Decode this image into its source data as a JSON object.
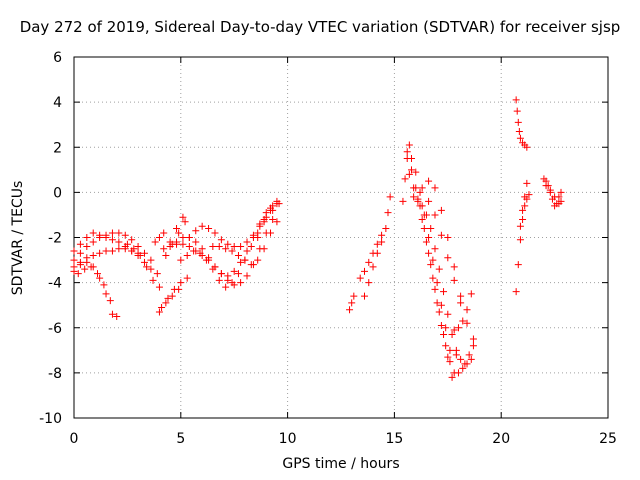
{
  "chart_data": {
    "type": "scatter",
    "title": "Day 272 of 2019, Sidereal Day-to-day VTEC variation (SDTVAR) for receiver sjsp",
    "xlabel": "GPS time / hours",
    "ylabel": "SDTVAR / TECUs",
    "xlim": [
      0,
      25
    ],
    "ylim": [
      -10,
      6
    ],
    "xticks": [
      "0",
      "5",
      "10",
      "15",
      "20",
      "25"
    ],
    "yticks": [
      "-10",
      "-8",
      "-6",
      "-4",
      "-2",
      "0",
      "2",
      "4",
      "6"
    ],
    "grid": true,
    "marker": "+",
    "color": "#ff0000",
    "series": [
      {
        "x": [
          0,
          0.3,
          0.6,
          0.9,
          1.2,
          1.5,
          1.8,
          2.1,
          2.4,
          2.7,
          3.0
        ],
        "y": [
          -2.6,
          -2.3,
          -2.0,
          -1.8,
          -1.9,
          -2.0,
          -2.1,
          -2.2,
          -2.4,
          -2.6,
          -2.7
        ]
      },
      {
        "x": [
          0,
          0.3,
          0.6,
          0.9,
          1.2,
          1.5,
          1.8,
          2.1,
          2.4,
          2.7,
          3.0,
          3.3,
          3.6
        ],
        "y": [
          -3.0,
          -2.7,
          -2.4,
          -2.2,
          -2.0,
          -1.9,
          -1.8,
          -1.8,
          -1.9,
          -2.1,
          -2.4,
          -2.7,
          -3.0
        ]
      },
      {
        "x": [
          0,
          0.3,
          0.6,
          0.9,
          1.2,
          1.5,
          1.8,
          2.1,
          2.4,
          2.7,
          3.0,
          3.3,
          3.6,
          3.9
        ],
        "y": [
          -3.3,
          -3.1,
          -2.9,
          -2.8,
          -2.7,
          -2.6,
          -2.6,
          -2.5,
          -2.5,
          -2.6,
          -2.8,
          -3.1,
          -3.4,
          -3.6
        ]
      },
      {
        "x": [
          0,
          0.3,
          0.6,
          0.9,
          1.2,
          1.5,
          1.8
        ],
        "y": [
          -3.5,
          -3.2,
          -3.1,
          -3.3,
          -3.8,
          -4.5,
          -5.4
        ]
      },
      {
        "x": [
          0.2,
          0.5,
          0.8,
          1.1,
          1.4,
          1.7,
          2.0
        ],
        "y": [
          -3.6,
          -3.4,
          -3.3,
          -3.6,
          -4.1,
          -4.8,
          -5.5
        ]
      },
      {
        "x": [
          2.5,
          2.8,
          3.1,
          3.4,
          3.7,
          4.0
        ],
        "y": [
          -2.3,
          -2.5,
          -2.8,
          -3.3,
          -3.9,
          -4.2
        ]
      },
      {
        "x": [
          3.8,
          4.0,
          4.2
        ],
        "y": [
          -2.2,
          -2.0,
          -1.8
        ]
      },
      {
        "x": [
          4.1,
          4.4,
          4.7,
          5.0,
          5.3
        ],
        "y": [
          -5.1,
          -4.7,
          -4.3,
          -4.0,
          -3.8
        ]
      },
      {
        "x": [
          4.0,
          4.3,
          4.6,
          4.9
        ],
        "y": [
          -5.3,
          -4.9,
          -4.6,
          -4.3
        ]
      },
      {
        "x": [
          4.3,
          4.6,
          4.9,
          5.2
        ],
        "y": [
          -2.8,
          -2.3,
          -1.8,
          -1.3
        ]
      },
      {
        "x": [
          4.5,
          4.8,
          5.1
        ],
        "y": [
          -2.2,
          -1.6,
          -1.1
        ]
      },
      {
        "x": [
          4.2,
          4.5,
          4.8,
          5.1,
          5.4,
          5.7,
          6.0,
          6.3,
          6.6,
          6.9,
          7.2,
          7.5,
          7.8,
          8.1,
          8.4,
          8.7,
          9.0,
          9.3
        ],
        "y": [
          -2.5,
          -2.4,
          -2.3,
          -2.3,
          -2.4,
          -2.6,
          -2.8,
          -3.0,
          -3.3,
          -3.6,
          -3.9,
          -4.1,
          -4.0,
          -3.7,
          -3.2,
          -2.5,
          -1.8,
          -1.2
        ]
      },
      {
        "x": [
          4.8,
          5.1,
          5.4,
          5.7,
          6.0,
          6.3,
          6.6,
          6.9,
          7.2,
          7.5,
          7.8,
          8.1,
          8.4,
          8.7,
          9.0,
          9.3
        ],
        "y": [
          -2.2,
          -2.0,
          -2.0,
          -2.2,
          -2.5,
          -2.9,
          -3.3,
          -3.6,
          -3.7,
          -3.5,
          -3.1,
          -2.6,
          -2.0,
          -1.4,
          -0.9,
          -0.6
        ]
      },
      {
        "x": [
          5.0,
          5.3,
          5.6,
          5.9,
          6.2,
          6.5,
          6.8,
          7.1,
          7.4,
          7.7,
          8.0,
          8.3,
          8.6,
          8.9,
          9.2,
          9.5
        ],
        "y": [
          -3.0,
          -2.8,
          -2.6,
          -2.7,
          -3.0,
          -3.4,
          -3.9,
          -4.2,
          -4.0,
          -3.6,
          -3.0,
          -2.4,
          -1.8,
          -1.2,
          -0.7,
          -0.4
        ]
      },
      {
        "x": [
          5.4,
          5.7,
          6.0,
          6.3,
          6.6,
          6.9,
          7.2,
          7.5,
          7.8,
          8.1,
          8.4,
          8.7,
          9.0,
          9.3,
          9.6
        ],
        "y": [
          -2.0,
          -1.7,
          -1.5,
          -1.6,
          -1.8,
          -2.1,
          -2.3,
          -2.4,
          -2.4,
          -2.2,
          -1.9,
          -1.5,
          -1.1,
          -0.8,
          -0.5
        ]
      },
      {
        "x": [
          6.5,
          6.8,
          7.1,
          7.4,
          7.7,
          8.0,
          8.3,
          8.6,
          8.9,
          9.2,
          9.5
        ],
        "y": [
          -2.4,
          -2.4,
          -2.5,
          -2.6,
          -2.8,
          -3.0,
          -3.2,
          -3.0,
          -2.5,
          -1.8,
          -1.3
        ]
      },
      {
        "x": [
          8.6,
          8.9,
          9.2,
          9.5
        ],
        "y": [
          -2.0,
          -1.3,
          -0.8,
          -0.5
        ]
      },
      {
        "x": [
          12.9,
          13.0,
          13.1
        ],
        "y": [
          -5.2,
          -4.9,
          -4.6
        ]
      },
      {
        "x": [
          13.4,
          13.6,
          13.8,
          14.0,
          14.2,
          14.4
        ],
        "y": [
          -3.8,
          -3.5,
          -3.1,
          -2.7,
          -2.3,
          -1.9
        ]
      },
      {
        "x": [
          13.6,
          13.8,
          14.0,
          14.2,
          14.4
        ],
        "y": [
          -4.6,
          -4.0,
          -3.3,
          -2.7,
          -2.2
        ]
      },
      {
        "x": [
          14.6,
          14.7,
          14.8
        ],
        "y": [
          -1.6,
          -0.9,
          -0.2
        ]
      },
      {
        "x": [
          15.4,
          15.5,
          15.6,
          15.7
        ],
        "y": [
          -0.4,
          0.6,
          1.5,
          2.1
        ]
      },
      {
        "x": [
          15.6,
          15.8,
          16.0,
          16.2,
          16.4,
          16.6,
          16.8,
          17.0,
          17.2,
          17.4,
          17.6
        ],
        "y": [
          1.8,
          1.0,
          0.2,
          -0.6,
          -1.6,
          -2.7,
          -3.8,
          -4.9,
          -5.9,
          -6.8,
          -7.5
        ]
      },
      {
        "x": [
          15.7,
          15.9,
          16.1,
          16.3,
          16.5,
          16.7,
          16.9,
          17.1,
          17.3,
          17.5,
          17.7
        ],
        "y": [
          0.8,
          0.2,
          -0.4,
          -1.2,
          -2.2,
          -3.2,
          -4.3,
          -5.3,
          -6.3,
          -7.3,
          -8.2
        ]
      },
      {
        "x": [
          15.8,
          16.0,
          16.2,
          16.4,
          16.6,
          16.8,
          17.0,
          17.2,
          17.4,
          17.6,
          17.8
        ],
        "y": [
          1.5,
          0.9,
          0.0,
          -1.0,
          -2.0,
          -3.0,
          -4.0,
          -5.0,
          -6.0,
          -7.0,
          -8.0
        ]
      },
      {
        "x": [
          15.9,
          16.1,
          16.3,
          16.5,
          16.7,
          16.9,
          17.1,
          17.3,
          17.5,
          17.7,
          17.9
        ],
        "y": [
          -0.2,
          -0.3,
          -0.6,
          -1.0,
          -1.6,
          -2.5,
          -3.4,
          -4.4,
          -5.4,
          -6.3,
          -7.2
        ]
      },
      {
        "x": [
          16.3,
          16.6,
          16.9,
          17.2,
          17.5,
          17.8,
          18.1,
          18.4,
          18.7
        ],
        "y": [
          0.2,
          0.5,
          0.2,
          -0.8,
          -2.0,
          -3.3,
          -4.6,
          -5.8,
          -6.8
        ]
      },
      {
        "x": [
          16.6,
          16.9,
          17.2,
          17.5,
          17.8,
          18.1
        ],
        "y": [
          -0.4,
          -1.0,
          -1.9,
          -2.9,
          -3.9,
          -4.9
        ]
      },
      {
        "x": [
          17.8,
          18.0,
          18.2,
          18.4,
          18.6
        ],
        "y": [
          -6.1,
          -6.0,
          -5.7,
          -5.2,
          -4.5
        ]
      },
      {
        "x": [
          17.9,
          18.1,
          18.3,
          18.5,
          18.7
        ],
        "y": [
          -7.0,
          -7.4,
          -7.6,
          -7.2,
          -6.5
        ]
      },
      {
        "x": [
          18.0,
          18.2,
          18.4,
          18.6
        ],
        "y": [
          -8.0,
          -7.8,
          -7.6,
          -7.4
        ]
      },
      {
        "x": [
          20.7,
          20.75,
          20.8,
          20.85,
          20.9,
          21.0,
          21.1,
          21.2
        ],
        "y": [
          4.1,
          3.6,
          3.1,
          2.7,
          2.4,
          2.2,
          2.1,
          2.0
        ]
      },
      {
        "x": [
          20.7,
          20.8,
          20.9,
          21.0,
          21.1,
          21.2,
          21.3
        ],
        "y": [
          -4.4,
          -3.2,
          -2.1,
          -1.2,
          -0.6,
          -0.3,
          -0.1
        ]
      },
      {
        "x": [
          20.9,
          21.0,
          21.1,
          21.2
        ],
        "y": [
          -1.5,
          -0.8,
          -0.2,
          0.4
        ]
      },
      {
        "x": [
          22.0,
          22.1,
          22.2,
          22.3,
          22.4,
          22.5,
          22.6,
          22.7,
          22.8
        ],
        "y": [
          0.6,
          0.5,
          0.3,
          0.0,
          -0.3,
          -0.6,
          -0.5,
          -0.2,
          0.0
        ]
      },
      {
        "x": [
          22.1,
          22.3,
          22.5,
          22.7,
          22.8
        ],
        "y": [
          0.3,
          0.1,
          -0.2,
          -0.5,
          -0.4
        ]
      }
    ]
  }
}
